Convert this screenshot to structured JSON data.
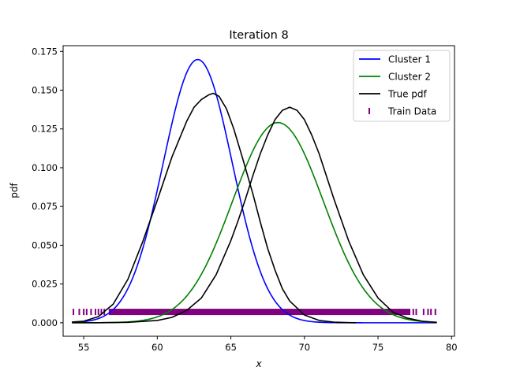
{
  "chart_data": {
    "type": "line",
    "title": "Iteration 8",
    "xlabel": "x",
    "ylabel": "pdf",
    "xlim": [
      53.6,
      80.2
    ],
    "ylim": [
      -0.0087,
      0.1787
    ],
    "xticks": [
      55,
      60,
      65,
      70,
      75,
      80
    ],
    "yticks": [
      0.0,
      0.025,
      0.05,
      0.075,
      0.1,
      0.125,
      0.15,
      0.175
    ],
    "ytick_labels": [
      "0.000",
      "0.025",
      "0.050",
      "0.075",
      "0.100",
      "0.125",
      "0.150",
      "0.175"
    ],
    "grid": false,
    "legend_position": "upper right",
    "series": [
      {
        "name": "Cluster 1",
        "color": "#0000ff",
        "kind": "gaussian",
        "mean": 62.75,
        "std": 2.35,
        "x_range": [
          54.2,
          79.0
        ]
      },
      {
        "name": "Cluster 2",
        "color": "#008000",
        "kind": "gaussian",
        "mean": 68.2,
        "std": 3.09,
        "x_range": [
          54.2,
          79.0
        ]
      },
      {
        "name": "True pdf",
        "color": "#000000",
        "kind": "curve",
        "x": [
          54.2,
          55.0,
          56.0,
          57.0,
          58.0,
          59.0,
          60.0,
          61.0,
          62.0,
          62.5,
          63.0,
          63.5,
          63.8,
          64.2,
          64.7,
          65.2,
          65.8,
          66.5,
          67.0,
          67.5,
          68.0,
          68.5,
          69.0,
          70.0,
          71.0,
          72.0,
          73.0,
          73.5
        ],
        "y": [
          0.0005,
          0.001,
          0.004,
          0.012,
          0.028,
          0.052,
          0.079,
          0.107,
          0.13,
          0.139,
          0.144,
          0.147,
          0.148,
          0.146,
          0.138,
          0.125,
          0.106,
          0.083,
          0.065,
          0.048,
          0.034,
          0.022,
          0.014,
          0.005,
          0.0015,
          0.0004,
          0.0001,
          5e-05
        ]
      },
      {
        "name": "True pdf",
        "color": "#000000",
        "kind": "curve",
        "x": [
          54.2,
          56.0,
          58.0,
          60.0,
          61.0,
          62.0,
          63.0,
          64.0,
          65.0,
          65.5,
          66.0,
          66.5,
          67.0,
          67.5,
          68.0,
          68.5,
          69.0,
          69.5,
          70.0,
          70.5,
          71.0,
          72.0,
          73.0,
          74.0,
          75.0,
          76.0,
          77.0,
          78.0,
          79.0
        ],
        "y": [
          0.0,
          0.0,
          0.0003,
          0.0015,
          0.0035,
          0.008,
          0.016,
          0.031,
          0.053,
          0.066,
          0.08,
          0.095,
          0.109,
          0.121,
          0.131,
          0.137,
          0.139,
          0.137,
          0.131,
          0.121,
          0.109,
          0.08,
          0.053,
          0.031,
          0.016,
          0.007,
          0.003,
          0.001,
          0.0003
        ]
      }
    ],
    "train_data": {
      "name": "Train Data",
      "color": "#800080",
      "y": 0.007,
      "dense_range": [
        56.7,
        77.2
      ],
      "sparse_x": [
        54.3,
        54.7,
        55.0,
        55.2,
        55.5,
        55.8,
        56.0,
        56.2,
        56.4,
        77.4,
        77.6,
        78.1,
        78.4,
        78.6,
        78.9
      ]
    },
    "legend": [
      {
        "label": "Cluster 1",
        "color": "#0000ff",
        "marker": "line"
      },
      {
        "label": "Cluster 2",
        "color": "#008000",
        "marker": "line"
      },
      {
        "label": "True pdf",
        "color": "#000000",
        "marker": "line"
      },
      {
        "label": "Train Data",
        "color": "#800080",
        "marker": "vline"
      }
    ]
  }
}
